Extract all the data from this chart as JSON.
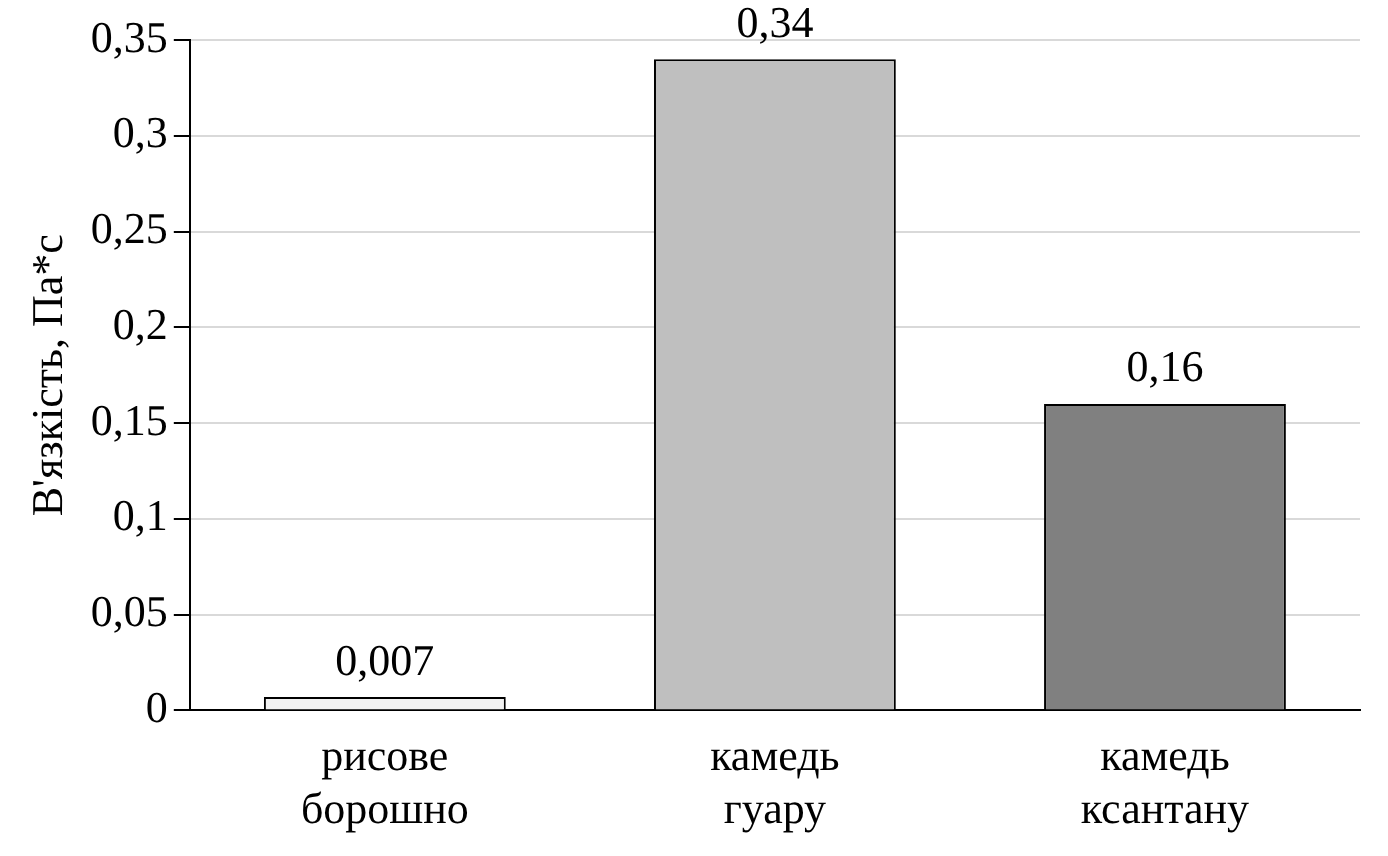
{
  "chart_data": {
    "type": "bar",
    "ylabel": "В'язкість, Па*с",
    "categories": [
      "рисове борошно",
      "камедь гуару",
      "камедь ксантану"
    ],
    "values": [
      0.007,
      0.34,
      0.16
    ],
    "colors": [
      "#f2f2f2",
      "#bfbfbf",
      "#808080"
    ],
    "value_labels": [
      "0,007",
      "0,34",
      "0,16"
    ],
    "ylim": [
      0,
      0.35
    ],
    "yticks": [
      0,
      {
        "value": 0.05,
        "label": "0,05"
      },
      {
        "value": 0.1,
        "label": "0,1"
      },
      {
        "value": 0.15,
        "label": "0,15"
      },
      {
        "value": 0.2,
        "label": "0,2"
      },
      {
        "value": 0.25,
        "label": "0,25"
      },
      {
        "value": 0.3,
        "label": "0,3"
      },
      {
        "value": 0.35,
        "label": "0,35"
      }
    ],
    "grid": "y"
  }
}
